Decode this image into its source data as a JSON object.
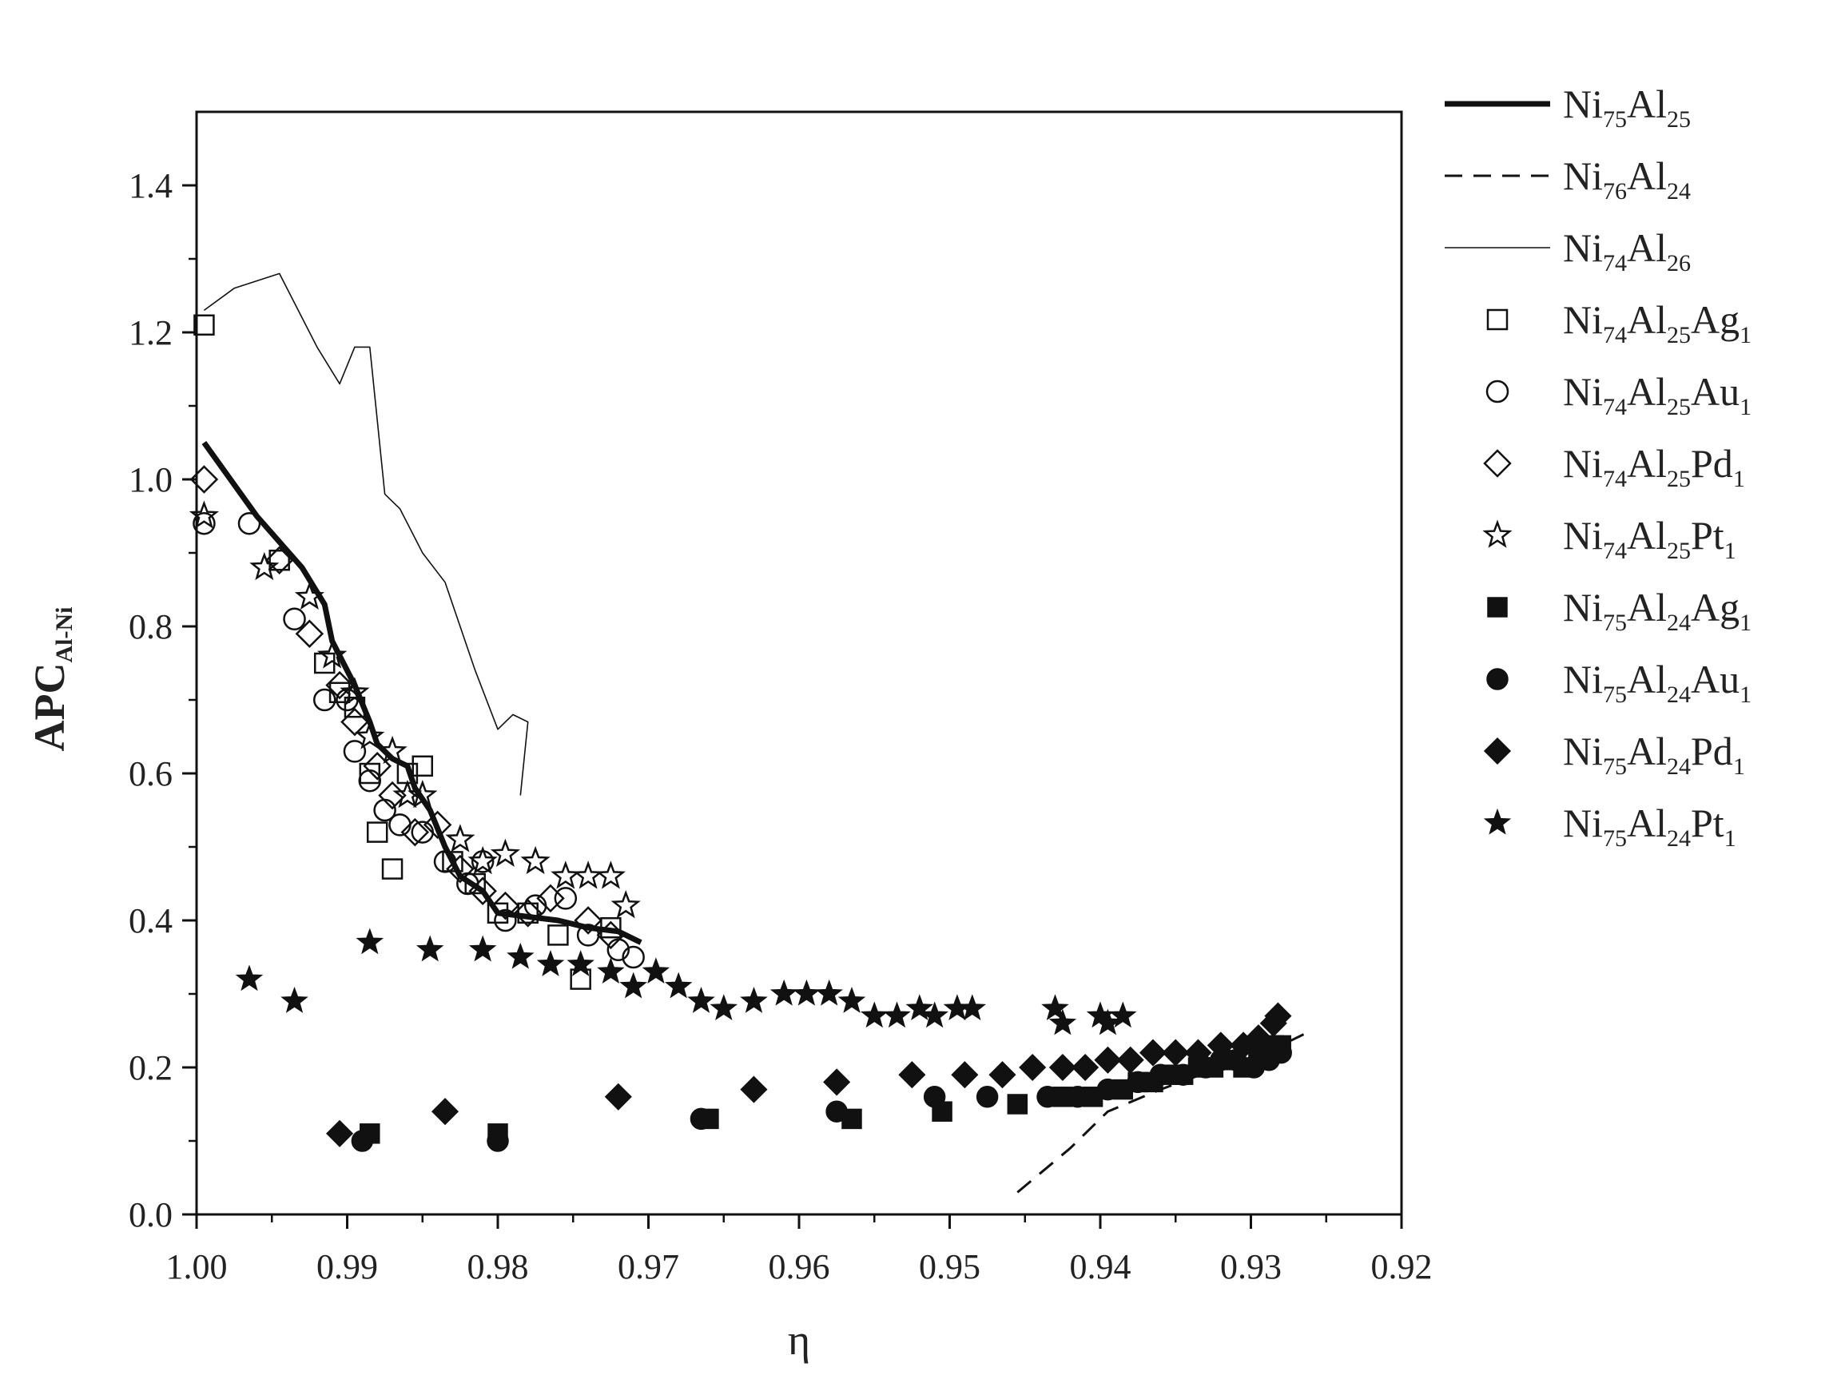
{
  "chart_data": {
    "type": "scatter",
    "title": "",
    "xlabel": "η",
    "ylabel": "APC",
    "ylabel_sub": "Al-Ni",
    "xlim": [
      1.0,
      0.92
    ],
    "ylim": [
      0.0,
      1.5
    ],
    "x_reversed": true,
    "grid": false,
    "legend_position": "right",
    "x_ticks": [
      "1.00",
      "0.99",
      "0.98",
      "0.97",
      "0.96",
      "0.95",
      "0.94",
      "0.93",
      "0.92"
    ],
    "y_ticks": [
      "0.0",
      "0.2",
      "0.4",
      "0.6",
      "0.8",
      "1.0",
      "1.2",
      "1.4"
    ],
    "series": [
      {
        "name": "Ni75Al25",
        "label_parts": [
          [
            "Ni",
            ""
          ],
          [
            "",
            "75"
          ],
          [
            "Al",
            ""
          ],
          [
            "",
            "25"
          ]
        ],
        "mark": "line-thick",
        "points": [
          [
            0.9995,
            1.05
          ],
          [
            0.996,
            0.95
          ],
          [
            0.993,
            0.88
          ],
          [
            0.9915,
            0.83
          ],
          [
            0.991,
            0.78
          ],
          [
            0.9895,
            0.72
          ],
          [
            0.9885,
            0.67
          ],
          [
            0.988,
            0.64
          ],
          [
            0.987,
            0.62
          ],
          [
            0.986,
            0.61
          ],
          [
            0.9855,
            0.58
          ],
          [
            0.9845,
            0.55
          ],
          [
            0.9835,
            0.5
          ],
          [
            0.9825,
            0.46
          ],
          [
            0.981,
            0.44
          ],
          [
            0.98,
            0.41
          ],
          [
            0.978,
            0.405
          ],
          [
            0.976,
            0.4
          ],
          [
            0.974,
            0.39
          ],
          [
            0.972,
            0.385
          ],
          [
            0.9705,
            0.37
          ]
        ]
      },
      {
        "name": "Ni76Al24",
        "label_parts": [
          [
            "Ni",
            ""
          ],
          [
            "",
            "76"
          ],
          [
            "Al",
            ""
          ],
          [
            "",
            "24"
          ]
        ],
        "mark": "line-dash",
        "points": [
          [
            0.9455,
            0.03
          ],
          [
            0.942,
            0.09
          ],
          [
            0.9395,
            0.14
          ],
          [
            0.936,
            0.17
          ],
          [
            0.932,
            0.2
          ],
          [
            0.929,
            0.22
          ],
          [
            0.9265,
            0.245
          ]
        ]
      },
      {
        "name": "Ni74Al26",
        "label_parts": [
          [
            "Ni",
            ""
          ],
          [
            "",
            "74"
          ],
          [
            "Al",
            ""
          ],
          [
            "",
            "26"
          ]
        ],
        "mark": "line-thin",
        "points": [
          [
            0.9995,
            1.23
          ],
          [
            0.9975,
            1.26
          ],
          [
            0.9945,
            1.28
          ],
          [
            0.992,
            1.18
          ],
          [
            0.9905,
            1.13
          ],
          [
            0.9895,
            1.18
          ],
          [
            0.9885,
            1.18
          ],
          [
            0.9875,
            0.98
          ],
          [
            0.9865,
            0.96
          ],
          [
            0.985,
            0.9
          ],
          [
            0.9835,
            0.86
          ],
          [
            0.9815,
            0.74
          ],
          [
            0.98,
            0.66
          ],
          [
            0.979,
            0.68
          ],
          [
            0.978,
            0.67
          ],
          [
            0.9785,
            0.57
          ]
        ]
      },
      {
        "name": "Ni74Al25Ag1",
        "label_parts": [
          [
            "Ni",
            ""
          ],
          [
            "",
            "74"
          ],
          [
            "Al",
            ""
          ],
          [
            "",
            "25"
          ],
          [
            "Ag",
            ""
          ],
          [
            "",
            "1"
          ]
        ],
        "mark": "square-open",
        "points": [
          [
            0.9995,
            1.21
          ],
          [
            0.9945,
            0.89
          ],
          [
            0.9915,
            0.75
          ],
          [
            0.9905,
            0.71
          ],
          [
            0.9895,
            0.69
          ],
          [
            0.9885,
            0.6
          ],
          [
            0.988,
            0.52
          ],
          [
            0.987,
            0.47
          ],
          [
            0.986,
            0.6
          ],
          [
            0.985,
            0.61
          ],
          [
            0.983,
            0.48
          ],
          [
            0.9815,
            0.45
          ],
          [
            0.98,
            0.41
          ],
          [
            0.978,
            0.41
          ],
          [
            0.976,
            0.38
          ],
          [
            0.9745,
            0.32
          ],
          [
            0.9725,
            0.39
          ]
        ]
      },
      {
        "name": "Ni74Al25Au1",
        "label_parts": [
          [
            "Ni",
            ""
          ],
          [
            "",
            "74"
          ],
          [
            "Al",
            ""
          ],
          [
            "",
            "25"
          ],
          [
            "Au",
            ""
          ],
          [
            "",
            "1"
          ]
        ],
        "mark": "circle-open",
        "points": [
          [
            0.9995,
            0.94
          ],
          [
            0.9965,
            0.94
          ],
          [
            0.9935,
            0.81
          ],
          [
            0.9915,
            0.7
          ],
          [
            0.99,
            0.7
          ],
          [
            0.9895,
            0.63
          ],
          [
            0.9885,
            0.59
          ],
          [
            0.9875,
            0.55
          ],
          [
            0.9865,
            0.53
          ],
          [
            0.985,
            0.52
          ],
          [
            0.9835,
            0.48
          ],
          [
            0.982,
            0.45
          ],
          [
            0.981,
            0.48
          ],
          [
            0.9795,
            0.4
          ],
          [
            0.9775,
            0.42
          ],
          [
            0.9755,
            0.43
          ],
          [
            0.974,
            0.38
          ],
          [
            0.972,
            0.36
          ],
          [
            0.971,
            0.35
          ]
        ]
      },
      {
        "name": "Ni74Al25Pd1",
        "label_parts": [
          [
            "Ni",
            ""
          ],
          [
            "",
            "74"
          ],
          [
            "Al",
            ""
          ],
          [
            "",
            "25"
          ],
          [
            "Pd",
            ""
          ],
          [
            "",
            "1"
          ]
        ],
        "mark": "diamond-open",
        "points": [
          [
            0.9995,
            1.0
          ],
          [
            0.9945,
            0.89
          ],
          [
            0.9925,
            0.79
          ],
          [
            0.9905,
            0.72
          ],
          [
            0.9895,
            0.67
          ],
          [
            0.988,
            0.61
          ],
          [
            0.987,
            0.57
          ],
          [
            0.9855,
            0.52
          ],
          [
            0.984,
            0.53
          ],
          [
            0.9825,
            0.47
          ],
          [
            0.981,
            0.44
          ],
          [
            0.9795,
            0.42
          ],
          [
            0.978,
            0.41
          ],
          [
            0.9765,
            0.43
          ],
          [
            0.974,
            0.4
          ],
          [
            0.9725,
            0.38
          ]
        ]
      },
      {
        "name": "Ni74Al25Pt1",
        "label_parts": [
          [
            "Ni",
            ""
          ],
          [
            "",
            "74"
          ],
          [
            "Al",
            ""
          ],
          [
            "",
            "25"
          ],
          [
            "Pt",
            ""
          ],
          [
            "",
            "1"
          ]
        ],
        "mark": "star-open",
        "points": [
          [
            0.9995,
            0.95
          ],
          [
            0.9955,
            0.88
          ],
          [
            0.9925,
            0.84
          ],
          [
            0.991,
            0.76
          ],
          [
            0.9895,
            0.71
          ],
          [
            0.9885,
            0.65
          ],
          [
            0.987,
            0.63
          ],
          [
            0.986,
            0.57
          ],
          [
            0.985,
            0.57
          ],
          [
            0.9825,
            0.51
          ],
          [
            0.981,
            0.48
          ],
          [
            0.9795,
            0.49
          ],
          [
            0.9775,
            0.48
          ],
          [
            0.9755,
            0.46
          ],
          [
            0.974,
            0.46
          ],
          [
            0.9725,
            0.46
          ],
          [
            0.9715,
            0.42
          ]
        ]
      },
      {
        "name": "Ni75Al24Ag1",
        "label_parts": [
          [
            "Ni",
            ""
          ],
          [
            "",
            "75"
          ],
          [
            "Al",
            ""
          ],
          [
            "",
            "24"
          ],
          [
            "Ag",
            ""
          ],
          [
            "",
            "1"
          ]
        ],
        "mark": "square-filled",
        "points": [
          [
            0.9885,
            0.11
          ],
          [
            0.98,
            0.11
          ],
          [
            0.966,
            0.13
          ],
          [
            0.9565,
            0.13
          ],
          [
            0.9505,
            0.14
          ],
          [
            0.9455,
            0.15
          ],
          [
            0.9425,
            0.16
          ],
          [
            0.9405,
            0.16
          ],
          [
            0.9385,
            0.17
          ],
          [
            0.9375,
            0.18
          ],
          [
            0.9365,
            0.18
          ],
          [
            0.9355,
            0.19
          ],
          [
            0.9345,
            0.19
          ],
          [
            0.9335,
            0.2
          ],
          [
            0.9325,
            0.2
          ],
          [
            0.9315,
            0.21
          ],
          [
            0.9305,
            0.2
          ],
          [
            0.9295,
            0.22
          ],
          [
            0.9285,
            0.23
          ],
          [
            0.928,
            0.23
          ]
        ]
      },
      {
        "name": "Ni75Al24Au1",
        "label_parts": [
          [
            "Ni",
            ""
          ],
          [
            "",
            "75"
          ],
          [
            "Al",
            ""
          ],
          [
            "",
            "24"
          ],
          [
            "Au",
            ""
          ],
          [
            "",
            "1"
          ]
        ],
        "mark": "circle-filled",
        "points": [
          [
            0.989,
            0.1
          ],
          [
            0.98,
            0.1
          ],
          [
            0.9665,
            0.13
          ],
          [
            0.9575,
            0.14
          ],
          [
            0.951,
            0.16
          ],
          [
            0.9475,
            0.16
          ],
          [
            0.9435,
            0.16
          ],
          [
            0.9415,
            0.16
          ],
          [
            0.9395,
            0.17
          ],
          [
            0.9375,
            0.18
          ],
          [
            0.936,
            0.19
          ],
          [
            0.9345,
            0.19
          ],
          [
            0.933,
            0.2
          ],
          [
            0.932,
            0.21
          ],
          [
            0.931,
            0.21
          ],
          [
            0.9298,
            0.2
          ],
          [
            0.9288,
            0.21
          ],
          [
            0.928,
            0.22
          ]
        ]
      },
      {
        "name": "Ni75Al24Pd1",
        "label_parts": [
          [
            "Ni",
            ""
          ],
          [
            "",
            "75"
          ],
          [
            "Al",
            ""
          ],
          [
            "",
            "24"
          ],
          [
            "Pd",
            ""
          ],
          [
            "",
            "1"
          ]
        ],
        "mark": "diamond-filled",
        "points": [
          [
            0.9905,
            0.11
          ],
          [
            0.9835,
            0.14
          ],
          [
            0.972,
            0.16
          ],
          [
            0.963,
            0.17
          ],
          [
            0.9575,
            0.18
          ],
          [
            0.9525,
            0.19
          ],
          [
            0.949,
            0.19
          ],
          [
            0.9465,
            0.19
          ],
          [
            0.9445,
            0.2
          ],
          [
            0.9425,
            0.2
          ],
          [
            0.941,
            0.2
          ],
          [
            0.9395,
            0.21
          ],
          [
            0.938,
            0.21
          ],
          [
            0.9365,
            0.22
          ],
          [
            0.935,
            0.22
          ],
          [
            0.9335,
            0.22
          ],
          [
            0.932,
            0.23
          ],
          [
            0.9305,
            0.23
          ],
          [
            0.9295,
            0.24
          ],
          [
            0.9285,
            0.26
          ],
          [
            0.9282,
            0.27
          ]
        ]
      },
      {
        "name": "Ni75Al24Pt1",
        "label_parts": [
          [
            "Ni",
            ""
          ],
          [
            "",
            "75"
          ],
          [
            "Al",
            ""
          ],
          [
            "",
            "24"
          ],
          [
            "Pt",
            ""
          ],
          [
            "",
            "1"
          ]
        ],
        "mark": "star-filled",
        "points": [
          [
            0.9965,
            0.32
          ],
          [
            0.9935,
            0.29
          ],
          [
            0.9885,
            0.37
          ],
          [
            0.9845,
            0.36
          ],
          [
            0.981,
            0.36
          ],
          [
            0.9785,
            0.35
          ],
          [
            0.9765,
            0.34
          ],
          [
            0.9745,
            0.34
          ],
          [
            0.9725,
            0.33
          ],
          [
            0.971,
            0.31
          ],
          [
            0.9695,
            0.33
          ],
          [
            0.968,
            0.31
          ],
          [
            0.9665,
            0.29
          ],
          [
            0.965,
            0.28
          ],
          [
            0.963,
            0.29
          ],
          [
            0.961,
            0.3
          ],
          [
            0.9595,
            0.3
          ],
          [
            0.958,
            0.3
          ],
          [
            0.9565,
            0.29
          ],
          [
            0.955,
            0.27
          ],
          [
            0.9535,
            0.27
          ],
          [
            0.952,
            0.28
          ],
          [
            0.951,
            0.27
          ],
          [
            0.9495,
            0.28
          ],
          [
            0.9485,
            0.28
          ],
          [
            0.943,
            0.28
          ],
          [
            0.9425,
            0.26
          ],
          [
            0.94,
            0.27
          ],
          [
            0.9395,
            0.26
          ],
          [
            0.9385,
            0.27
          ]
        ]
      }
    ]
  }
}
